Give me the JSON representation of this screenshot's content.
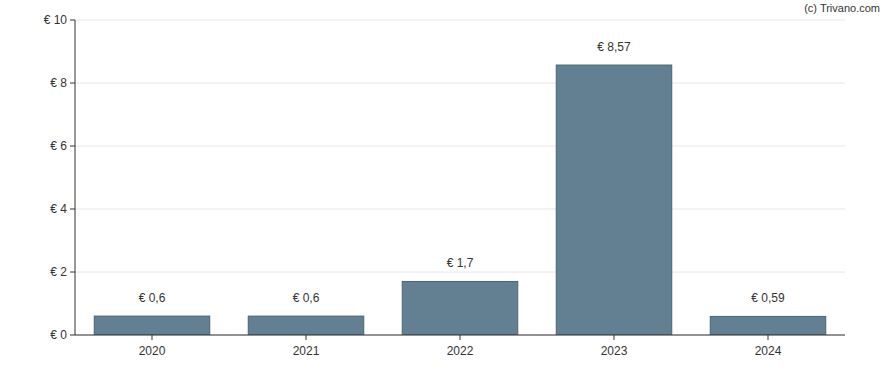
{
  "chart_data": {
    "type": "bar",
    "annotation": "(c) Trivano.com",
    "categories": [
      "2020",
      "2021",
      "2022",
      "2023",
      "2024"
    ],
    "values": [
      0.6,
      0.6,
      1.7,
      8.57,
      0.59
    ],
    "value_labels": [
      "€ 0,6",
      "€ 0,6",
      "€ 1,7",
      "€ 8,57",
      "€ 0,59"
    ],
    "data_labels": true,
    "color": "#638092",
    "ylim": [
      0,
      10
    ],
    "yticks": [
      {
        "value": 0,
        "label": "€ 0"
      },
      {
        "value": 2,
        "label": "€ 2"
      },
      {
        "value": 4,
        "label": "€ 4"
      },
      {
        "value": 6,
        "label": "€ 6"
      },
      {
        "value": 8,
        "label": "€ 8"
      },
      {
        "value": 10,
        "label": "€ 10"
      }
    ],
    "grid": true
  }
}
